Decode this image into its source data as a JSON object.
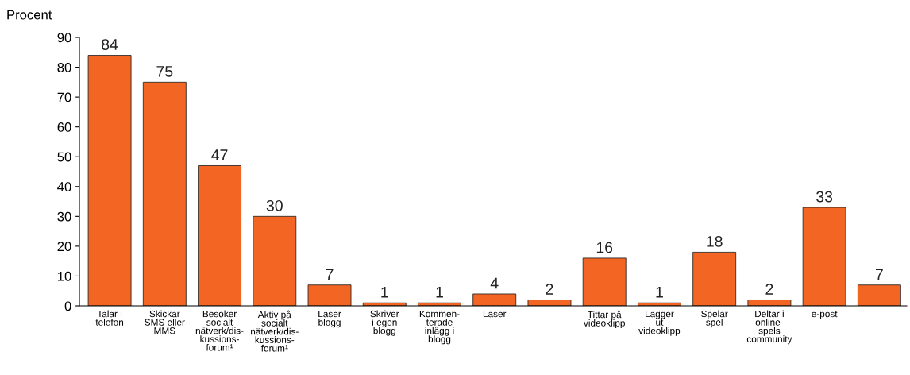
{
  "chart_data": {
    "type": "bar",
    "ylabel": "Procent",
    "categories": [
      "Talar i\ntelefon",
      "Skickar\nSMS eller\nMMS",
      "Besöker\nsocialt\nnätverk/dis-\nkussions-\nforum¹",
      "Aktiv på\nsocialt\nnätverk/dis-\nkussions-\nforum¹",
      "Läser\nblogg",
      "Skriver\ni egen\nblogg",
      "Kommen-\nterade\ninlägg i\nblogg",
      "Läser",
      null,
      "Tittar på\nvideoklipp",
      "Lägger\nut\nvideoklipp",
      "Spelar\nspel",
      "Deltar i\nonline-\nspels\ncommunity",
      "e-post",
      null
    ],
    "values": [
      84,
      75,
      47,
      30,
      7,
      1,
      1,
      4,
      2,
      16,
      1,
      18,
      2,
      33,
      7
    ],
    "color": "#f26522",
    "ylim": [
      0,
      90
    ],
    "yticks": [
      0,
      10,
      20,
      30,
      40,
      50,
      60,
      70,
      80,
      90
    ],
    "data_labels": true,
    "grid": false,
    "legend": false
  }
}
